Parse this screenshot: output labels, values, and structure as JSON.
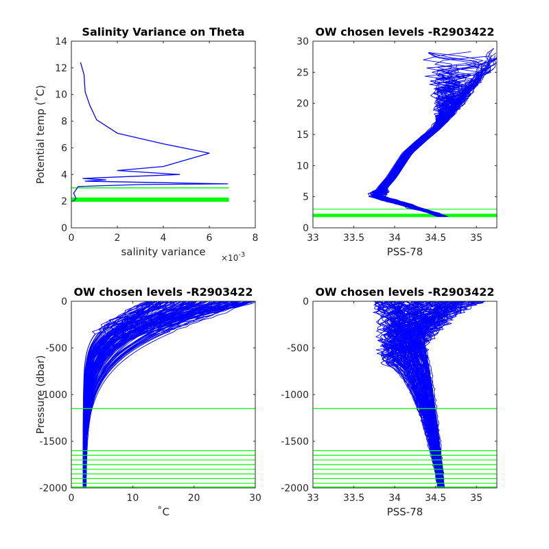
{
  "chart_data": [
    {
      "id": "tl",
      "type": "line",
      "title": "Salinity Variance on Theta",
      "xlabel": "salinity variance",
      "x_exponent": "×10",
      "x_exponent_power": "-3",
      "ylabel": "Potential temp (˚C)",
      "xlim": [
        0,
        8
      ],
      "ylim": [
        0,
        14
      ],
      "xticks": [
        0,
        2,
        4,
        6,
        8
      ],
      "yticks": [
        0,
        2,
        4,
        6,
        8,
        10,
        12,
        14
      ],
      "xtick_labels": [
        "0",
        "2",
        "4",
        "6",
        "8"
      ],
      "ytick_labels": [
        "0",
        "2",
        "4",
        "6",
        "8",
        "10",
        "12",
        "14"
      ],
      "grid": false,
      "colors": {
        "profile": "#0000ff",
        "levels": "#00ff00"
      },
      "series": [
        {
          "values": [
            [
              0.4,
              12.4
            ],
            [
              0.55,
              11.5
            ],
            [
              0.6,
              10.2
            ],
            [
              0.8,
              9.2
            ],
            [
              1.1,
              8.1
            ],
            [
              2.0,
              7.1
            ],
            [
              4.0,
              6.3
            ],
            [
              6.0,
              5.6
            ],
            [
              4.0,
              4.6
            ],
            [
              2.0,
              4.3
            ],
            [
              4.7,
              4.0
            ],
            [
              1.8,
              3.8
            ],
            [
              0.5,
              3.7
            ],
            [
              1.5,
              3.6
            ],
            [
              0.6,
              3.5
            ],
            [
              5.0,
              3.35
            ],
            [
              6.8,
              3.3
            ],
            [
              3.0,
              3.25
            ],
            [
              0.3,
              3.1
            ],
            [
              0.1,
              2.6
            ],
            [
              0.2,
              2.2
            ],
            [
              0.1,
              2.0
            ]
          ]
        }
      ],
      "level_lines": [
        3.0,
        2.0,
        2.04,
        2.08,
        2.12,
        2.16,
        2.2,
        2.24
      ],
      "level_x_range": [
        0,
        6.85
      ]
    },
    {
      "id": "tr",
      "type": "line",
      "title": "OW chosen levels -R2903422",
      "xlabel": "PSS-78",
      "ylabel": "",
      "xlim": [
        33,
        35.25
      ],
      "ylim": [
        0,
        30
      ],
      "xticks": [
        33,
        33.5,
        34,
        34.5,
        35
      ],
      "yticks": [
        0,
        5,
        10,
        15,
        20,
        25,
        30
      ],
      "xtick_labels": [
        "33",
        "33.5",
        "34",
        "34.5",
        "35"
      ],
      "ytick_labels": [
        "0",
        "5",
        "10",
        "15",
        "20",
        "25",
        "30"
      ],
      "grid": false,
      "colors": {
        "profile": "#0000ff",
        "levels": "#00ff00"
      },
      "profile_count": 130,
      "level_lines": [
        3.0,
        1.8,
        1.9,
        2.0,
        2.1,
        2.2
      ]
    },
    {
      "id": "bl",
      "type": "line",
      "title": "OW chosen levels -R2903422",
      "xlabel": "˚C",
      "ylabel": "Pressure (dbar)",
      "xlim": [
        0,
        30
      ],
      "ylim": [
        -2000,
        0
      ],
      "xticks": [
        0,
        10,
        20,
        30
      ],
      "yticks": [
        -2000,
        -1500,
        -1000,
        -500,
        0
      ],
      "xtick_labels": [
        "0",
        "10",
        "20",
        "30"
      ],
      "ytick_labels": [
        "-2000",
        "-1500",
        "-1000",
        "-500",
        "0"
      ],
      "grid": false,
      "colors": {
        "profile": "#0000ff",
        "levels": "#00ff00"
      },
      "profile_count": 130,
      "level_lines": [
        -1150,
        -1600,
        -1650,
        -1700,
        -1750,
        -1800,
        -1850,
        -1900,
        -1950,
        -1990
      ]
    },
    {
      "id": "br",
      "type": "line",
      "title": "OW chosen levels -R2903422",
      "xlabel": "PSS-78",
      "ylabel": "",
      "xlim": [
        33,
        35.25
      ],
      "ylim": [
        -2000,
        0
      ],
      "xticks": [
        33,
        33.5,
        34,
        34.5,
        35
      ],
      "yticks": [
        -2000,
        -1500,
        -1000,
        -500,
        0
      ],
      "xtick_labels": [
        "33",
        "33.5",
        "34",
        "34.5",
        "35"
      ],
      "ytick_labels": [
        "-2000",
        "-1500",
        "-1000",
        "-500",
        "0"
      ],
      "grid": false,
      "colors": {
        "profile": "#0000ff",
        "levels": "#00ff00"
      },
      "profile_count": 130,
      "level_lines": [
        -1150,
        -1600,
        -1650,
        -1700,
        -1750,
        -1800,
        -1850,
        -1900,
        -1950,
        -1990
      ]
    }
  ]
}
